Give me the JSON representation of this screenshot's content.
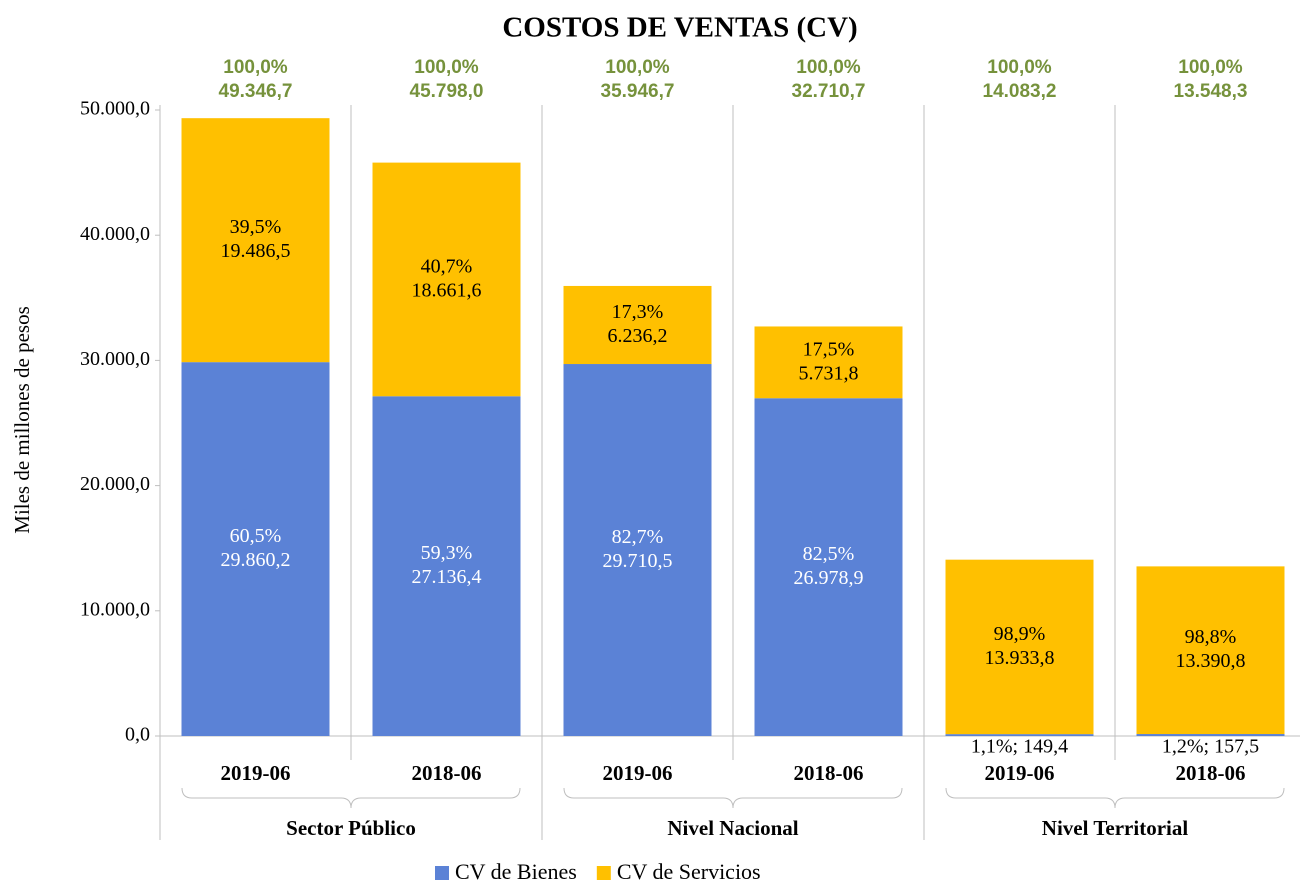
{
  "chart_data": {
    "type": "stacked_bar",
    "title": "COSTOS DE VENTAS (CV)",
    "y_label": "Miles de millones de pesos",
    "categories": [
      "2019-06",
      "2018-06",
      "2019-06",
      "2018-06",
      "2019-06",
      "2018-06"
    ],
    "groups": [
      "Sector Público",
      "Nivel Nacional",
      "Nivel Territorial"
    ],
    "series": [
      {
        "name": "CV de Bienes",
        "color": "#5b82d6",
        "values": [
          29860.2,
          27136.4,
          29710.5,
          26978.9,
          149.4,
          157.5
        ],
        "value_labels": [
          "60,5%\n29.860,2",
          "59,3%\n27.136,4",
          "82,7%\n29.710,5",
          "82,5%\n26.978,9",
          "1,1%; 149,4",
          "1,2%; 157,5"
        ]
      },
      {
        "name": "CV de Servicios",
        "color": "#ffc000",
        "values": [
          19486.5,
          18661.6,
          6236.2,
          5731.8,
          13933.8,
          13390.8
        ],
        "value_labels": [
          "39,5%\n19.486,5",
          "40,7%\n18.661,6",
          "17,3%\n6.236,2",
          "17,5%\n5.731,8",
          "98,9%\n13.933,8",
          "98,8%\n13.390,8"
        ]
      }
    ],
    "totals": [
      49346.7,
      45798.0,
      35946.7,
      32710.7,
      14083.2,
      13548.3
    ],
    "total_labels": [
      "100,0%\n49.346,7",
      "100,0%\n45.798,0",
      "100,0%\n35.946,7",
      "100,0%\n32.710,7",
      "100,0%\n14.083,2",
      "100,0%\n13.548,3"
    ],
    "ylim": [
      0,
      50000
    ],
    "yticks": [
      {
        "value": 0,
        "label": "0,0"
      },
      {
        "value": 10000,
        "label": "10.000,0"
      },
      {
        "value": 20000,
        "label": "20.000,0"
      },
      {
        "value": 30000,
        "label": "30.000,0"
      },
      {
        "value": 40000,
        "label": "40.000,0"
      },
      {
        "value": 50000,
        "label": "50.000,0"
      }
    ],
    "legend": "bottom"
  }
}
